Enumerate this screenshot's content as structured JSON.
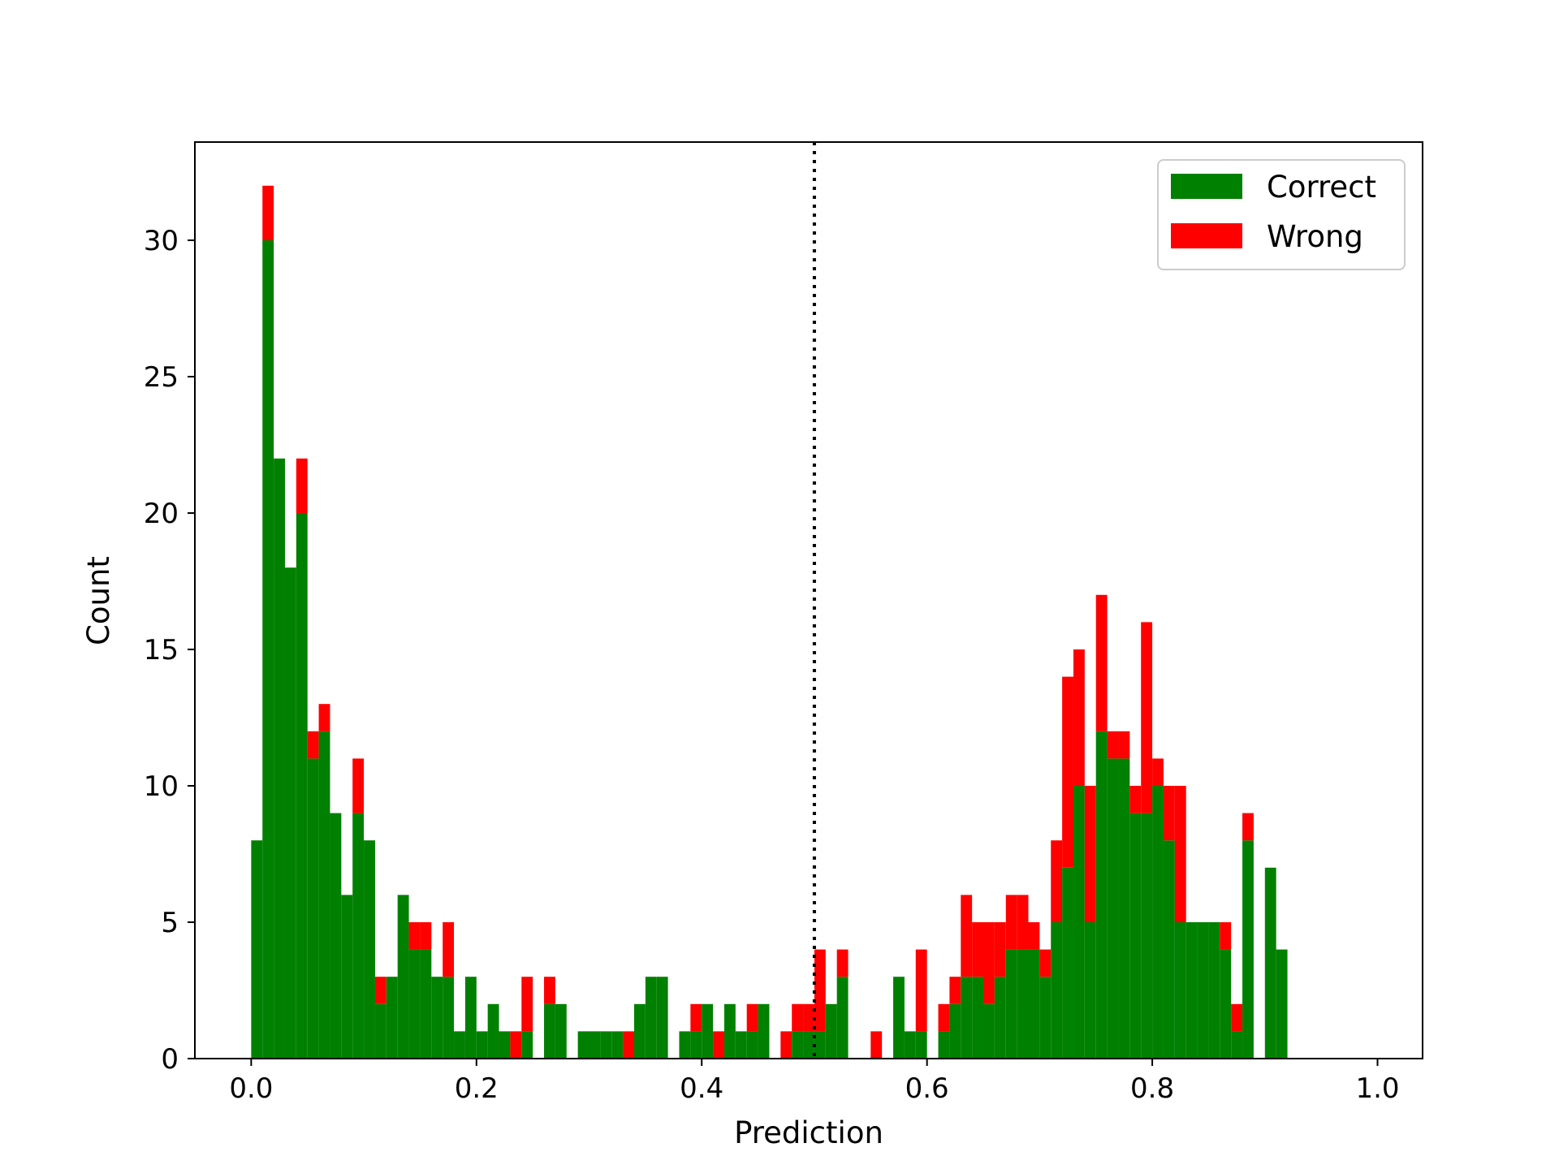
{
  "chart_data": {
    "type": "bar",
    "subtype": "stacked-histogram",
    "title": "",
    "xlabel": "Prediction",
    "ylabel": "Count",
    "xlim": [
      -0.05,
      1.04
    ],
    "ylim": [
      0,
      33.6
    ],
    "x_ticks": [
      {
        "value": 0.0,
        "label": "0.0"
      },
      {
        "value": 0.2,
        "label": "0.2"
      },
      {
        "value": 0.4,
        "label": "0.4"
      },
      {
        "value": 0.6,
        "label": "0.6"
      },
      {
        "value": 0.8,
        "label": "0.8"
      },
      {
        "value": 1.0,
        "label": "1.0"
      }
    ],
    "y_ticks": [
      {
        "value": 0,
        "label": "0"
      },
      {
        "value": 5,
        "label": "5"
      },
      {
        "value": 10,
        "label": "10"
      },
      {
        "value": 15,
        "label": "15"
      },
      {
        "value": 20,
        "label": "20"
      },
      {
        "value": 25,
        "label": "25"
      },
      {
        "value": 30,
        "label": "30"
      }
    ],
    "bin_width": 0.01,
    "bin_starts": [
      0.0,
      0.01,
      0.02,
      0.03,
      0.04,
      0.05,
      0.06,
      0.07,
      0.08,
      0.09,
      0.1,
      0.11,
      0.12,
      0.13,
      0.14,
      0.15,
      0.16,
      0.17,
      0.18,
      0.19,
      0.2,
      0.21,
      0.22,
      0.23,
      0.24,
      0.25,
      0.26,
      0.27,
      0.28,
      0.29,
      0.3,
      0.31,
      0.32,
      0.33,
      0.34,
      0.35,
      0.36,
      0.37,
      0.38,
      0.39,
      0.4,
      0.41,
      0.42,
      0.43,
      0.44,
      0.45,
      0.46,
      0.47,
      0.48,
      0.49,
      0.5,
      0.51,
      0.52,
      0.53,
      0.54,
      0.55,
      0.56,
      0.57,
      0.58,
      0.59,
      0.6,
      0.61,
      0.62,
      0.63,
      0.64,
      0.65,
      0.66,
      0.67,
      0.68,
      0.69,
      0.7,
      0.71,
      0.72,
      0.73,
      0.74,
      0.75,
      0.76,
      0.77,
      0.78,
      0.79,
      0.8,
      0.81,
      0.82,
      0.83,
      0.84,
      0.85,
      0.86,
      0.87,
      0.88,
      0.89,
      0.9,
      0.91
    ],
    "series": [
      {
        "name": "Correct",
        "color": "#008000",
        "values": [
          8,
          30,
          22,
          18,
          20,
          11,
          12,
          9,
          6,
          9,
          8,
          2,
          3,
          6,
          4,
          4,
          3,
          3,
          1,
          3,
          1,
          2,
          1,
          0,
          1,
          0,
          2,
          2,
          0,
          1,
          1,
          1,
          1,
          0,
          2,
          3,
          3,
          0,
          1,
          1,
          2,
          0,
          2,
          1,
          1,
          2,
          0,
          0,
          1,
          1,
          1,
          2,
          3,
          0,
          0,
          0,
          0,
          3,
          1,
          1,
          0,
          1,
          2,
          3,
          3,
          2,
          3,
          4,
          4,
          4,
          3,
          5,
          7,
          10,
          5,
          12,
          11,
          11,
          9,
          9,
          10,
          8,
          5,
          5,
          5,
          5,
          4,
          1,
          8,
          0,
          7,
          4
        ]
      },
      {
        "name": "Wrong",
        "color": "#ff0000",
        "values": [
          0,
          2,
          0,
          0,
          2,
          1,
          1,
          0,
          0,
          2,
          0,
          1,
          0,
          0,
          1,
          1,
          0,
          2,
          0,
          0,
          0,
          0,
          0,
          1,
          2,
          0,
          1,
          0,
          0,
          0,
          0,
          0,
          0,
          1,
          0,
          0,
          0,
          0,
          0,
          1,
          0,
          1,
          0,
          0,
          1,
          0,
          0,
          1,
          1,
          1,
          3,
          0,
          1,
          0,
          0,
          1,
          0,
          0,
          0,
          3,
          0,
          1,
          1,
          3,
          2,
          3,
          2,
          2,
          2,
          1,
          1,
          3,
          7,
          5,
          5,
          5,
          1,
          1,
          1,
          7,
          1,
          2,
          5,
          0,
          0,
          0,
          1,
          1,
          1,
          0,
          0,
          0
        ]
      }
    ],
    "threshold_line": {
      "x": 0.5,
      "style": "dotted",
      "color": "#000000"
    },
    "legend_position": "top-right",
    "grid": false
  }
}
